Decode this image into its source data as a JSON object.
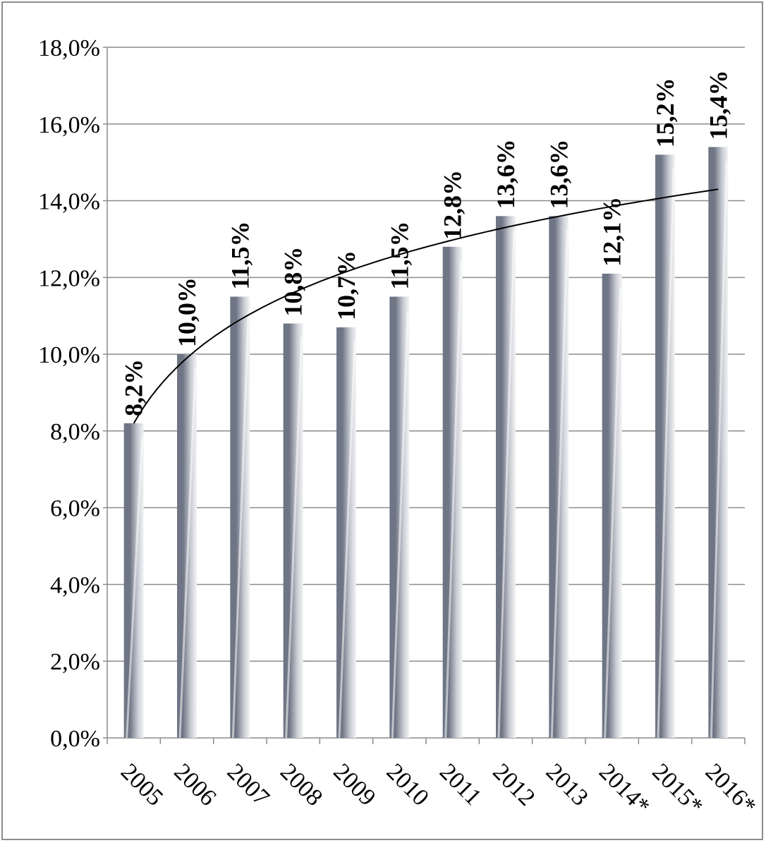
{
  "chart_data": {
    "type": "bar",
    "title": "",
    "xlabel": "",
    "ylabel": "",
    "categories": [
      "2005",
      "2006",
      "2007",
      "2008",
      "2009",
      "2010",
      "2011",
      "2012",
      "2013",
      "2014*",
      "2015*",
      "2016*"
    ],
    "values": [
      8.2,
      10.0,
      11.5,
      10.8,
      10.7,
      11.5,
      12.8,
      13.6,
      13.6,
      12.1,
      15.2,
      15.4
    ],
    "data_labels": [
      "8,2%",
      "10,0%",
      "11,5%",
      "10,8%",
      "10,7%",
      "11,5%",
      "12,8%",
      "13,6%",
      "13,6%",
      "12,1%",
      "15,2%",
      "15,4%"
    ],
    "ylim": [
      0,
      18
    ],
    "y_ticks": [
      0,
      2,
      4,
      6,
      8,
      10,
      12,
      14,
      16,
      18
    ],
    "y_tick_labels": [
      "0,0%",
      "2,0%",
      "4,0%",
      "6,0%",
      "8,0%",
      "10,0%",
      "12,0%",
      "14,0%",
      "16,0%",
      "18,0%"
    ],
    "grid": true,
    "legend": "none",
    "trendline": {
      "type": "logarithmic",
      "from_value": 8.2,
      "to_value": 14.3
    },
    "colors": {
      "bar_dark": "#6e7585",
      "bar_light": "#f4f4f6",
      "grid": "#8c8c8c",
      "trendline": "#000000"
    }
  }
}
